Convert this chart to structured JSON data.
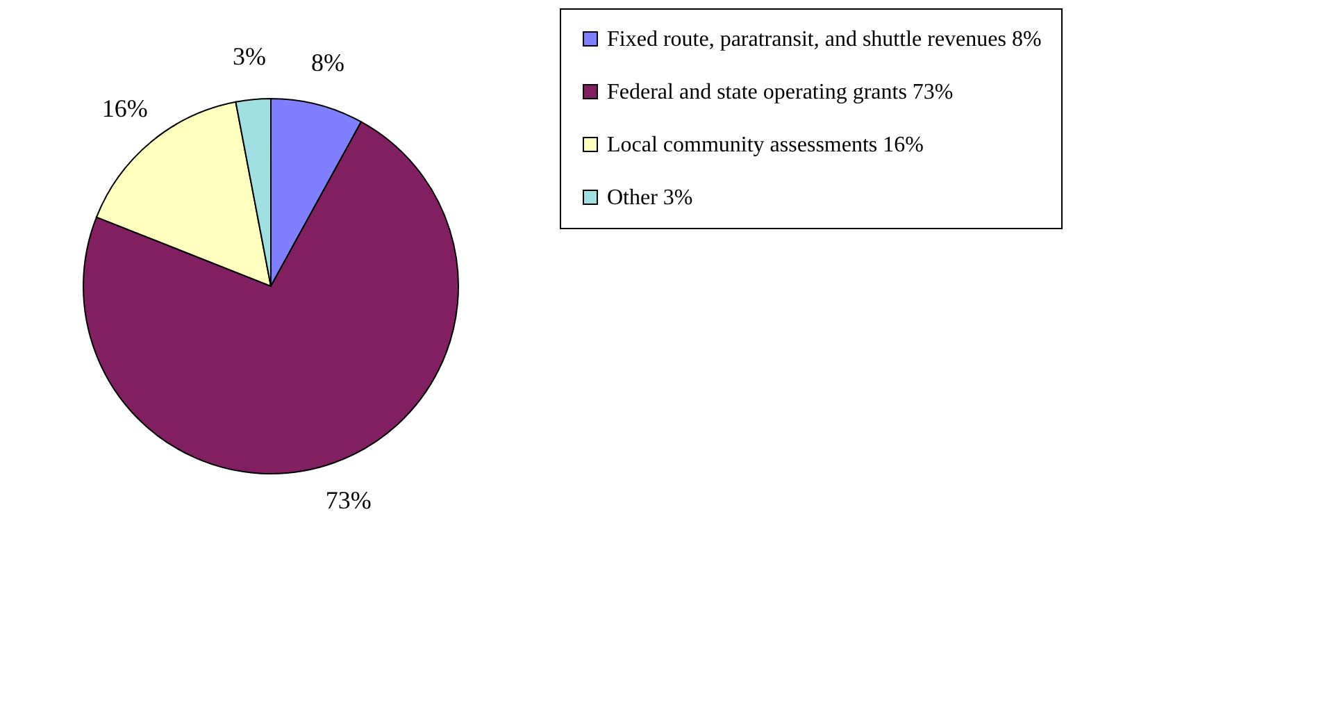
{
  "chart_data": {
    "type": "pie",
    "categories": [
      "Fixed route, paratransit, and shuttle revenues 8%",
      "Federal and state operating grants 73%",
      "Local community assessments 16%",
      "Other 3%"
    ],
    "values": [
      8,
      73,
      16,
      3
    ],
    "value_labels": [
      "8%",
      "73%",
      "16%",
      "3%"
    ],
    "colors": [
      "#8080ff",
      "#802060",
      "#ffffc0",
      "#a0e0e0"
    ],
    "legend": "right"
  }
}
